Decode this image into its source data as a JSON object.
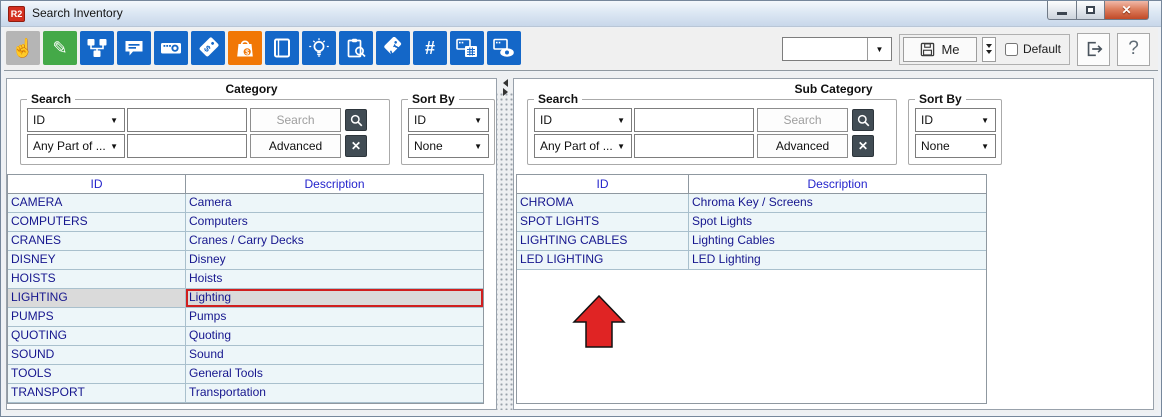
{
  "window": {
    "title": "Search Inventory",
    "app_icon_text": "R2",
    "controls": [
      "minimize",
      "restore",
      "close"
    ]
  },
  "toolbar": {
    "buttons": [
      {
        "name": "hand-pointer-icon",
        "color": "gray",
        "state": "disabled"
      },
      {
        "name": "edit-pencil-icon",
        "color": "green",
        "state": "normal"
      },
      {
        "name": "org-chart-icon",
        "color": "blue",
        "state": "normal"
      },
      {
        "name": "comment-icon",
        "color": "blue",
        "state": "normal"
      },
      {
        "name": "projector-icon",
        "color": "blue",
        "state": "normal"
      },
      {
        "name": "price-tag-icon",
        "color": "blue",
        "state": "normal"
      },
      {
        "name": "shopping-bag-icon",
        "color": "orange",
        "state": "active"
      },
      {
        "name": "book-icon",
        "color": "blue",
        "state": "normal"
      },
      {
        "name": "lightbulb-icon",
        "color": "blue",
        "state": "normal"
      },
      {
        "name": "clipboard-search-icon",
        "color": "blue",
        "state": "normal"
      },
      {
        "name": "tag-refresh-icon",
        "color": "blue",
        "state": "normal"
      },
      {
        "name": "hash-icon",
        "color": "blue",
        "state": "normal"
      },
      {
        "name": "projector-calendar-icon",
        "color": "blue",
        "state": "normal"
      },
      {
        "name": "projector-eye-icon",
        "color": "blue",
        "state": "normal"
      }
    ],
    "hash_glyph": "#",
    "view_combo_value": "",
    "me_button_label": "Me",
    "default_checkbox_label": "Default",
    "default_checked": false,
    "help_button_label": "?"
  },
  "colors": {
    "toolbar_blue": "#1467c8",
    "toolbar_green": "#44a948",
    "toolbar_orange": "#f17705",
    "toolbar_gray": "#b5b5b5",
    "selection_border_red": "#d01f1f",
    "selected_row_bg": "#dadada",
    "row_bg": "#edf6f9",
    "row_text": "#16168e",
    "header_text": "#2424cc"
  },
  "panels": [
    {
      "title": "Category",
      "search": {
        "label": "Search",
        "field_combo_value": "ID",
        "field_input_value": "",
        "search_button_label": "Search",
        "search_button_disabled": true,
        "mode_combo_value": "Any Part of ...",
        "mode_input_value": "",
        "advanced_button_label": "Advanced"
      },
      "sort": {
        "label": "Sort By",
        "primary_value": "ID",
        "secondary_value": "None"
      },
      "table": {
        "columns": [
          "ID",
          "Description"
        ],
        "rows": [
          [
            "CAMERA",
            "Camera"
          ],
          [
            "COMPUTERS",
            "Computers"
          ],
          [
            "CRANES",
            "Cranes / Carry Decks"
          ],
          [
            "DISNEY",
            "Disney"
          ],
          [
            "HOISTS",
            "Hoists"
          ],
          [
            "LIGHTING",
            "Lighting"
          ],
          [
            "PUMPS",
            "Pumps"
          ],
          [
            "QUOTING",
            "Quoting"
          ],
          [
            "SOUND",
            "Sound"
          ],
          [
            "TOOLS",
            "General Tools"
          ],
          [
            "TRANSPORT",
            "Transportation"
          ]
        ],
        "selected_id": "LIGHTING"
      }
    },
    {
      "title": "Sub Category",
      "search": {
        "label": "Search",
        "field_combo_value": "ID",
        "field_input_value": "",
        "search_button_label": "Search",
        "search_button_disabled": true,
        "mode_combo_value": "Any Part of ...",
        "mode_input_value": "",
        "advanced_button_label": "Advanced"
      },
      "sort": {
        "label": "Sort By",
        "primary_value": "ID",
        "secondary_value": "None"
      },
      "table": {
        "columns": [
          "ID",
          "Description"
        ],
        "rows": [
          [
            "CHROMA",
            "Chroma Key / Screens"
          ],
          [
            "SPOT LIGHTS",
            "Spot Lights"
          ],
          [
            "LIGHTING CABLES",
            "Lighting Cables"
          ],
          [
            "LED LIGHTING",
            "LED Lighting"
          ]
        ],
        "selected_id": null
      },
      "annotation": "red-up-arrow"
    }
  ]
}
